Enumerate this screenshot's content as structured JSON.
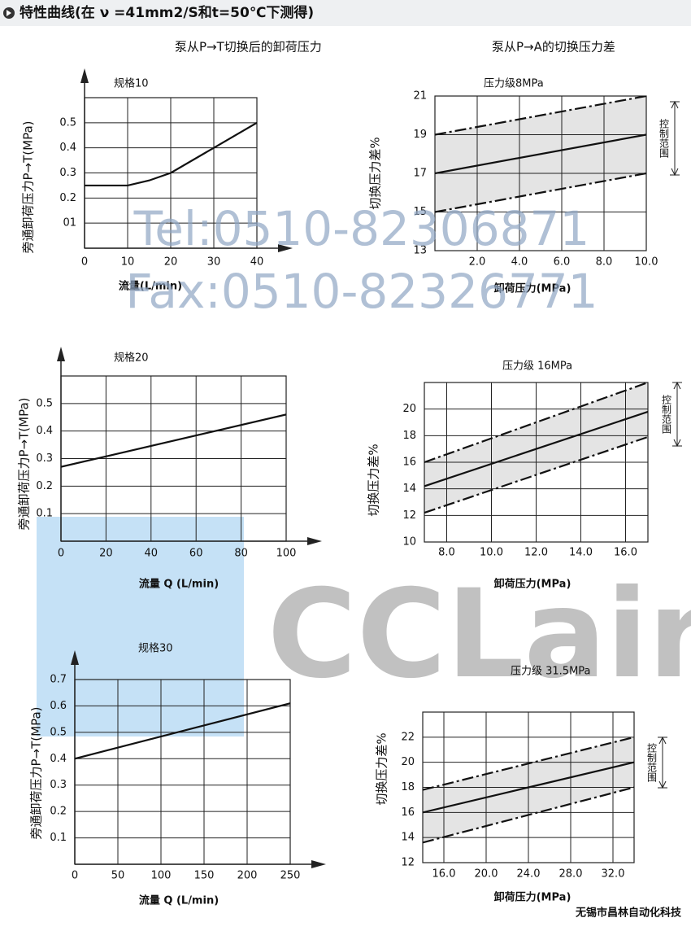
{
  "title": "特性曲线(在 ν =41mm2/S和t=50℃下测得)",
  "watermark": [
    "Tel:0510-82306871",
    "Fax:0510-82326771",
    "CCLair"
  ],
  "footer": "无锡市昌林自动化科技",
  "chart_data": [
    {
      "type": "line",
      "title": "泵从P→T切换后的卸荷压力",
      "subtitle": "规格10",
      "x_label": "流量(L/min)",
      "y_label": "旁通卸荷压力P→T(MPa)",
      "x": [
        0,
        10,
        15,
        20,
        30,
        40
      ],
      "series": [
        {
          "color": "#111111",
          "style": "solid",
          "values": [
            0.25,
            0.25,
            0.27,
            0.3,
            0.4,
            0.5
          ]
        }
      ],
      "xlim": [
        0,
        40
      ],
      "xticks": [
        0,
        10,
        20,
        30,
        40
      ],
      "ylim": [
        0,
        0.6
      ],
      "yticks": [
        {
          "value": 0.1,
          "label": "01"
        },
        0.2,
        0.3,
        0.4,
        0.5
      ],
      "grid": true,
      "axis_arrows": true
    },
    {
      "type": "line",
      "title": "泵从P→A的切换压力差",
      "subtitle": "压力级8MPa",
      "x_label": "卸荷压力(MPa)",
      "y_label": "切换压力差%",
      "annotation": "控制范围",
      "x": [
        0,
        10
      ],
      "series": [
        {
          "color": "#111111",
          "style": "dashdot",
          "values": [
            19,
            21
          ]
        },
        {
          "color": "#111111",
          "style": "solid",
          "values": [
            17,
            19
          ]
        },
        {
          "color": "#111111",
          "style": "dashdot",
          "values": [
            15,
            17
          ]
        }
      ],
      "band": true,
      "xlim": [
        0,
        10
      ],
      "xticks": [
        {
          "value": 2,
          "label": "2.0"
        },
        {
          "value": 4,
          "label": "4.0"
        },
        {
          "value": 6,
          "label": "6.0"
        },
        {
          "value": 8,
          "label": "8.0"
        },
        {
          "value": 10,
          "label": "10.0"
        }
      ],
      "ylim": [
        13,
        21
      ],
      "yticks": [
        13,
        15,
        17,
        19,
        21
      ],
      "grid": true,
      "axis_arrows": false
    },
    {
      "type": "line",
      "subtitle": "规格20",
      "x_label": "流量 Q (L/min)",
      "y_label": "旁通卸荷压力P→T(MPa)",
      "x": [
        0,
        100
      ],
      "series": [
        {
          "color": "#111111",
          "style": "solid",
          "values": [
            0.27,
            0.46
          ]
        }
      ],
      "xlim": [
        0,
        100
      ],
      "xticks": [
        0,
        20,
        40,
        60,
        80,
        100
      ],
      "ylim": [
        0,
        0.6
      ],
      "yticks": [
        0.1,
        0.2,
        0.3,
        0.4,
        0.5
      ],
      "grid": true,
      "axis_arrows": true
    },
    {
      "type": "line",
      "subtitle": "压力级 16MPa",
      "x_label": "卸荷压力(MPa)",
      "y_label": "切换压力差%",
      "annotation": "控制范围",
      "x": [
        7,
        17
      ],
      "series": [
        {
          "color": "#111111",
          "style": "dashdot",
          "values": [
            16,
            22
          ]
        },
        {
          "color": "#111111",
          "style": "solid",
          "values": [
            14.2,
            19.8
          ]
        },
        {
          "color": "#111111",
          "style": "dashdot",
          "values": [
            12.2,
            17.9
          ]
        }
      ],
      "band": true,
      "xlim": [
        7,
        17
      ],
      "xticks": [
        {
          "value": 8,
          "label": "8.0"
        },
        {
          "value": 10,
          "label": "10.0"
        },
        {
          "value": 12,
          "label": "12.0"
        },
        {
          "value": 14,
          "label": "14.0"
        },
        {
          "value": 16,
          "label": "16.0"
        }
      ],
      "ylim": [
        10,
        22
      ],
      "yticks": [
        10,
        12,
        14,
        16,
        18,
        20
      ],
      "grid": true,
      "axis_arrows": false
    },
    {
      "type": "line",
      "subtitle": "规格30",
      "x_label": "流量 Q (L/min)",
      "y_label": "旁通卸荷压力P→T(MPa)",
      "x": [
        0,
        250
      ],
      "series": [
        {
          "color": "#111111",
          "style": "solid",
          "values": [
            0.4,
            0.61
          ]
        }
      ],
      "xlim": [
        0,
        250
      ],
      "xticks": [
        0,
        50,
        100,
        150,
        200,
        250
      ],
      "ylim": [
        0,
        0.7
      ],
      "yticks": [
        0.1,
        0.2,
        0.3,
        0.4,
        0.5,
        0.6,
        0.7
      ],
      "grid": true,
      "axis_arrows": true
    },
    {
      "type": "line",
      "subtitle": "压力级 31.5MPa",
      "x_label": "卸荷压力(MPa)",
      "y_label": "切换压力差%",
      "annotation": "控制范围",
      "x": [
        14,
        34
      ],
      "series": [
        {
          "color": "#111111",
          "style": "dashdot",
          "values": [
            17.8,
            22
          ]
        },
        {
          "color": "#111111",
          "style": "solid",
          "values": [
            16,
            20
          ]
        },
        {
          "color": "#111111",
          "style": "dashdot",
          "values": [
            13.6,
            18
          ]
        }
      ],
      "band": true,
      "xlim": [
        14,
        34
      ],
      "xticks": [
        {
          "value": 16,
          "label": "16.0"
        },
        {
          "value": 20,
          "label": "20.0"
        },
        {
          "value": 24,
          "label": "24.0"
        },
        {
          "value": 28,
          "label": "28.0"
        },
        {
          "value": 32,
          "label": "32.0"
        }
      ],
      "ylim": [
        12,
        24
      ],
      "yticks": [
        12,
        14,
        16,
        18,
        20,
        22
      ],
      "grid": true,
      "axis_arrows": false
    }
  ]
}
